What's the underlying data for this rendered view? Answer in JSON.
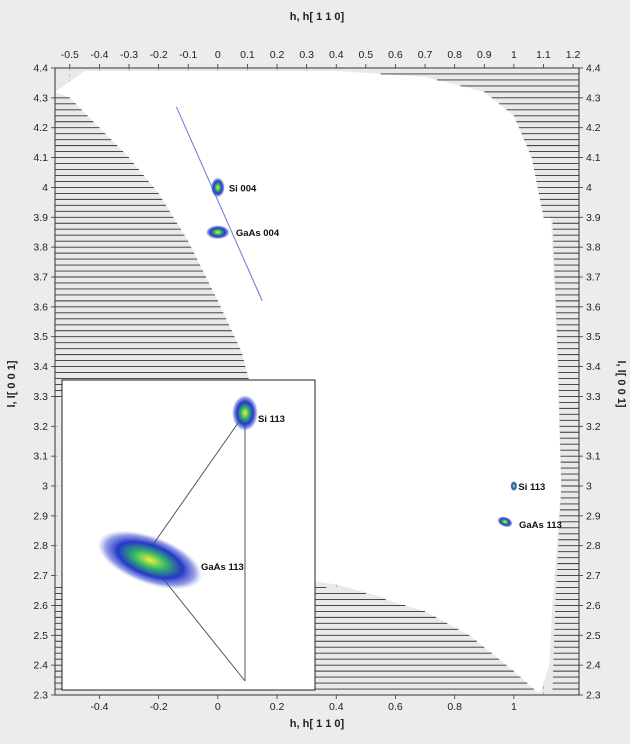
{
  "chart_data": {
    "type": "heatmap",
    "xlabel_top": "h, h[ 1 1 0]",
    "xlabel_bottom": "h, h[ 1 1 0]",
    "ylabel_left": "l, l[ 0 0 1]",
    "ylabel_right": "l, l[ 0 0 1]",
    "xlim": [
      -0.55,
      1.22
    ],
    "ylim": [
      2.3,
      4.4
    ],
    "top_ticks": [
      "-0.5",
      "-0.4",
      "-0.3",
      "-0.2",
      "-0.1",
      "0",
      "0.1",
      "0.2",
      "0.3",
      "0.4",
      "0.5",
      "0.6",
      "0.7",
      "0.8",
      "0.9",
      "1",
      "1.1",
      "1.2"
    ],
    "top_tick_values": [
      -0.5,
      -0.4,
      -0.3,
      -0.2,
      -0.1,
      0,
      0.1,
      0.2,
      0.3,
      0.4,
      0.5,
      0.6,
      0.7,
      0.8,
      0.9,
      1,
      1.1,
      1.2
    ],
    "bottom_ticks": [
      "-0.4",
      "-0.2",
      "0",
      "0.2",
      "0.4",
      "0.6",
      "0.8",
      "1"
    ],
    "bottom_tick_values": [
      -0.4,
      -0.2,
      0,
      0.2,
      0.4,
      0.6,
      0.8,
      1
    ],
    "y_ticks": [
      "2.3",
      "2.4",
      "2.5",
      "2.6",
      "2.7",
      "2.8",
      "2.9",
      "3",
      "3.1",
      "3.2",
      "3.3",
      "3.4",
      "3.5",
      "3.6",
      "3.7",
      "3.8",
      "3.9",
      "4",
      "4.1",
      "4.2",
      "4.3",
      "4.4"
    ],
    "y_tick_values": [
      2.3,
      2.4,
      2.5,
      2.6,
      2.7,
      2.8,
      2.9,
      3.0,
      3.1,
      3.2,
      3.3,
      3.4,
      3.5,
      3.6,
      3.7,
      3.8,
      3.9,
      4.0,
      4.1,
      4.2,
      4.3,
      4.4
    ],
    "peaks": [
      {
        "label": "Si 004",
        "h": 0.0,
        "l": 4.0
      },
      {
        "label": "GaAs 004",
        "h": 0.0,
        "l": 3.85
      },
      {
        "label": "Si 113",
        "h": 1.0,
        "l": 3.0
      },
      {
        "label": "GaAs 113",
        "h": 0.97,
        "l": 2.88
      }
    ],
    "inset_peaks": [
      {
        "label": "Si 113"
      },
      {
        "label": "GaAs 113"
      }
    ],
    "colors": {
      "background": "#ffffff",
      "inaccessible": "#e9e9e9",
      "hatch": "#333333",
      "peak_outer": "#2a3cc4",
      "peak_inner": "#1fa46a",
      "peak_core": "#e8ee3a"
    },
    "grid": true
  }
}
